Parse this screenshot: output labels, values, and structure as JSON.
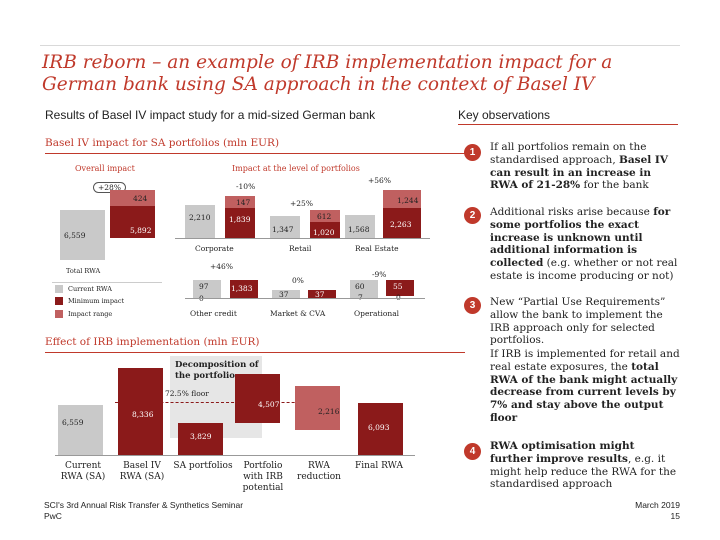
{
  "title": "IRB reborn – an example of IRB implementation impact for a German bank using SA approach in the context of Basel IV",
  "subtitle_left": "Results of Basel IV impact study for a mid-sized German bank",
  "subtitle_right": "Key observations",
  "top_chart": {
    "heading": "Basel IV impact for SA portfolios (mln EUR)",
    "overall_label": "Overall impact",
    "level_label": "Impact at the level of portfolios",
    "overall_pct": "+28%",
    "overall_current": "6,559",
    "overall_min": "424",
    "overall_total": "5,892",
    "corporate_pct": "-10%",
    "corporate_vals": [
      "2,210",
      "147",
      "1,839"
    ],
    "retail_pct": "+25%",
    "retail_vals": [
      "1,347",
      "612",
      "1,020"
    ],
    "realestate_pct": "+56%",
    "realestate_vals": [
      "1,568",
      "1,244",
      "2,263"
    ],
    "corporate_label": "Corporate",
    "retail_label": "Retail",
    "realestate_label": "Real Estate",
    "other_pct": "+46%",
    "other_vals": [
      "97",
      "1,383",
      "0"
    ],
    "market_pct": "0%",
    "market_vals": [
      "37",
      "37"
    ],
    "op_pct": "-9%",
    "op_vals": [
      "60",
      "55",
      "7",
      "0"
    ],
    "other_label": "Other credit",
    "market_label": "Market & CVA",
    "op_label": "Operational",
    "legend_title": "Total RWA",
    "legend": [
      "Current RWA",
      "Minimum impact",
      "Impact range"
    ],
    "colors": {
      "current": "#c9c9c9",
      "minimum": "#8b1a1a",
      "range": "#c06060",
      "accent": "#c0392b"
    }
  },
  "bottom_chart": {
    "heading": "Effect of IRB implementation (mln EUR)",
    "callout": "Decomposition of the portfolio",
    "floor": "72.5% floor",
    "values": [
      "6,559",
      "8,336",
      "3,829",
      "4,507",
      "2,216",
      "6,093"
    ],
    "categories": [
      "Current RWA (SA)",
      "Basel IV RWA (SA)",
      "SA portfolios",
      "Portfolio with IRB potential",
      "RWA reduction",
      "Final RWA"
    ]
  },
  "observations": [
    {
      "num": "1",
      "pre": "If all portfolios remain on the standardised approach, ",
      "bold": "Basel IV can result in an increase in RWA of 21-28%",
      "post": " for the bank"
    },
    {
      "num": "2",
      "pre": "Additional risks arise because ",
      "bold": "for some portfolios the exact increase is unknown until additional information is collected",
      "post": " (e.g. whether or not real estate is income producing or not)"
    },
    {
      "num": "3",
      "pre": "New “Partial Use Requirements” allow the bank to implement the IRB approach only for selected portfolios.",
      "bold": "",
      "post": ""
    },
    {
      "num": "",
      "pre": "If IRB is implemented for retail and real estate exposures, the ",
      "bold": "total RWA of the bank might actually decrease from current levels by 7% and stay above the output floor",
      "post": ""
    },
    {
      "num": "4",
      "pre": "",
      "bold": "RWA optimisation might further improve results",
      "post": ", e.g. it might help reduce the RWA for the standardised approach"
    }
  ],
  "footer_left": "SCI's 3rd Annual Risk Transfer & Synthetics Seminar",
  "footer_brand": "PwC",
  "footer_date": "March 2019",
  "footer_page": "15"
}
